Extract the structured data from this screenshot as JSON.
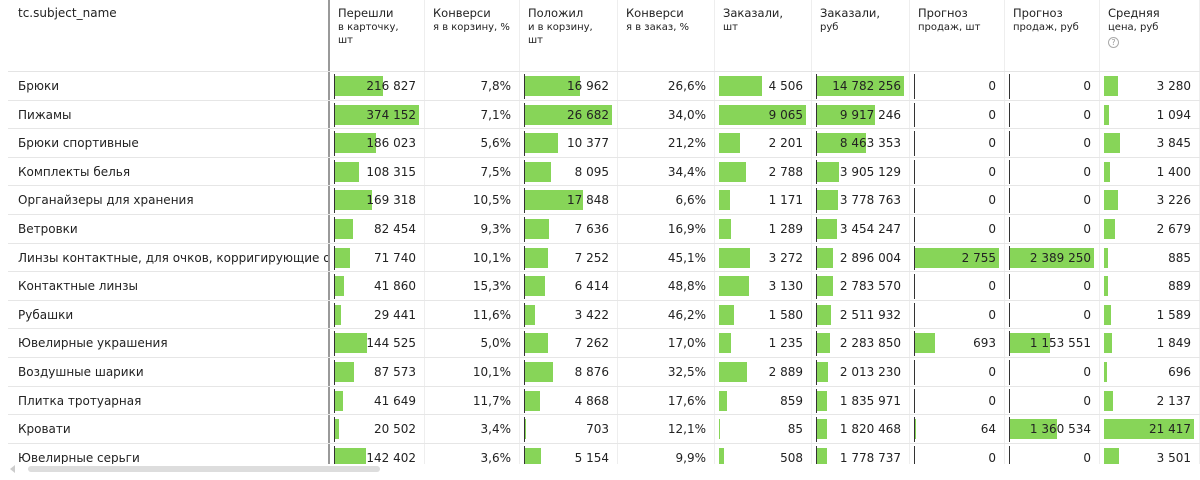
{
  "columns": [
    {
      "label": "tc.subject_name",
      "sub": ""
    },
    {
      "label": "Перешли",
      "sub": "в карточку, шт",
      "bar": true,
      "axis": true
    },
    {
      "label": "Конверси",
      "sub": "я в корзину, %"
    },
    {
      "label": "Положил",
      "sub": "и в корзину, шт",
      "bar": true,
      "axis": true
    },
    {
      "label": "Конверси",
      "sub": "я в заказ, %"
    },
    {
      "label": "Заказали,",
      "sub": "шт",
      "bar": true
    },
    {
      "label": "Заказали,",
      "sub": "руб",
      "bar": true,
      "axis": true
    },
    {
      "label": "Прогноз",
      "sub": "продаж, шт",
      "bar": true,
      "axis": true
    },
    {
      "label": "Прогноз",
      "sub": "продаж, руб",
      "bar": true,
      "axis": true
    },
    {
      "label": "Средняя",
      "sub": "цена, руб",
      "bar": true,
      "help": true
    }
  ],
  "help_icon": "question-circle-icon",
  "bar_color": "#87d558",
  "rows": [
    [
      "Брюки",
      "216 827",
      "7,8%",
      "16 962",
      "26,6%",
      "4 506",
      "14 782 256",
      "0",
      "0",
      "3 280"
    ],
    [
      "Пижамы",
      "374 152",
      "7,1%",
      "26 682",
      "34,0%",
      "9 065",
      "9 917 246",
      "0",
      "0",
      "1 094"
    ],
    [
      "Брюки спортивные",
      "186 023",
      "5,6%",
      "10 377",
      "21,2%",
      "2 201",
      "8 463 353",
      "0",
      "0",
      "3 845"
    ],
    [
      "Комплекты белья",
      "108 315",
      "7,5%",
      "8 095",
      "34,4%",
      "2 788",
      "3 905 129",
      "0",
      "0",
      "1 400"
    ],
    [
      "Органайзеры для хранения",
      "169 318",
      "10,5%",
      "17 848",
      "6,6%",
      "1 171",
      "3 778 763",
      "0",
      "0",
      "3 226"
    ],
    [
      "Ветровки",
      "82 454",
      "9,3%",
      "7 636",
      "16,9%",
      "1 289",
      "3 454 247",
      "0",
      "0",
      "2 679"
    ],
    [
      "Линзы контактные, для очков, корригирующие очки",
      "71 740",
      "10,1%",
      "7 252",
      "45,1%",
      "3 272",
      "2 896 004",
      "2 755",
      "2 389 250",
      "885"
    ],
    [
      "Контактные линзы",
      "41 860",
      "15,3%",
      "6 414",
      "48,8%",
      "3 130",
      "2 783 570",
      "0",
      "0",
      "889"
    ],
    [
      "Рубашки",
      "29 441",
      "11,6%",
      "3 422",
      "46,2%",
      "1 580",
      "2 511 932",
      "0",
      "0",
      "1 589"
    ],
    [
      "Ювелирные украшения",
      "144 525",
      "5,0%",
      "7 262",
      "17,0%",
      "1 235",
      "2 283 850",
      "693",
      "1 153 551",
      "1 849"
    ],
    [
      "Воздушные шарики",
      "87 573",
      "10,1%",
      "8 876",
      "32,5%",
      "2 889",
      "2 013 230",
      "0",
      "0",
      "696"
    ],
    [
      "Плитка тротуарная",
      "41 649",
      "11,7%",
      "4 868",
      "17,6%",
      "859",
      "1 835 971",
      "0",
      "0",
      "2 137"
    ],
    [
      "Кровати",
      "20 502",
      "3,4%",
      "703",
      "12,1%",
      "85",
      "1 820 468",
      "64",
      "1 360 534",
      "21 417"
    ],
    [
      "Ювелирные серьги",
      "142 402",
      "3,6%",
      "5 154",
      "9,9%",
      "508",
      "1 778 737",
      "0",
      "0",
      "3 501"
    ]
  ]
}
